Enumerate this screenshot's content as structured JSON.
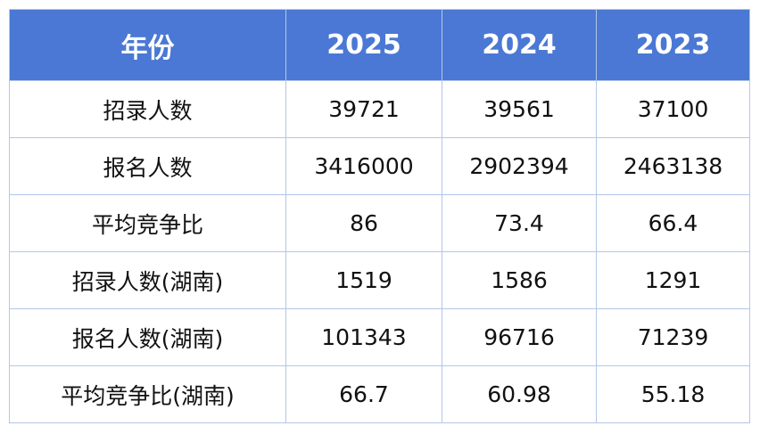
{
  "table": {
    "header": [
      "年份",
      "2025",
      "2024",
      "2023"
    ],
    "rows": [
      [
        "招录人数",
        "39721",
        "39561",
        "37100"
      ],
      [
        "报名人数",
        "3416000",
        "2902394",
        "2463138"
      ],
      [
        "平均竞争比",
        "86",
        "73.4",
        "66.4"
      ],
      [
        "招录人数(湖南)",
        "1519",
        "1586",
        "1291"
      ],
      [
        "报名人数(湖南)",
        "101343",
        "96716",
        "71239"
      ],
      [
        "平均竞争比(湖南)",
        "66.7",
        "60.98",
        "55.18"
      ]
    ]
  }
}
